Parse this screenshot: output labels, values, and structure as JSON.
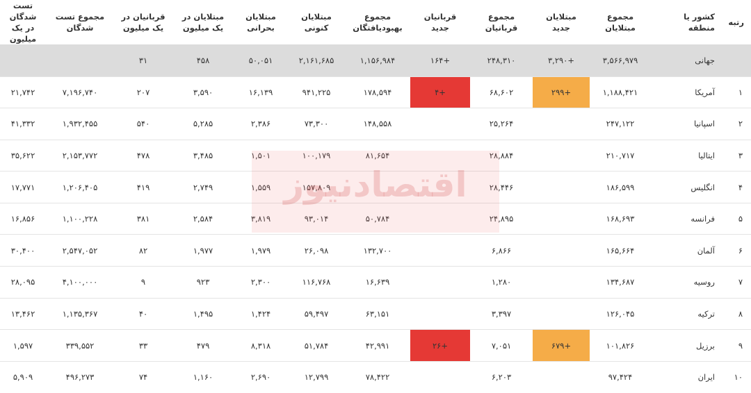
{
  "headers": {
    "rank": "رتبه",
    "country": "کشور یا منطقه",
    "total_cases": "مجموع مبتلایان",
    "new_cases": "مبتلایان جدید",
    "total_deaths": "مجموع قربانیان",
    "new_deaths": "قربانیان جدید",
    "total_recovered": "مجموع بهبودیافتگان",
    "active_cases": "مبتلایان کنونی",
    "critical_cases": "مبتلایان بحرانی",
    "cases_per_million": "مبتلایان در یک میلیون",
    "deaths_per_million": "قربانیان در یک میلیون",
    "total_tests": "مجموع تست شدگان",
    "tests_per_million": "تست شدگان در یک میلیون"
  },
  "rows": [
    {
      "rank": "",
      "country": "جهانی",
      "total_cases": "۳,۵۶۶,۹۷۹",
      "new_cases": "+۳,۲۹۰",
      "total_deaths": "۲۴۸,۳۱۰",
      "new_deaths": "+۱۶۴",
      "total_recovered": "۱,۱۵۶,۹۸۴",
      "active_cases": "۲,۱۶۱,۶۸۵",
      "critical_cases": "۵۰,۰۵۱",
      "cases_per_million": "۴۵۸",
      "deaths_per_million": "۳۱",
      "total_tests": "",
      "tests_per_million": ""
    },
    {
      "rank": "۱",
      "country": "آمریکا",
      "total_cases": "۱,۱۸۸,۴۲۱",
      "new_cases": "+۲۹۹",
      "total_deaths": "۶۸,۶۰۲",
      "new_deaths": "+۴",
      "total_recovered": "۱۷۸,۵۹۴",
      "active_cases": "۹۴۱,۲۲۵",
      "critical_cases": "۱۶,۱۳۹",
      "cases_per_million": "۳,۵۹۰",
      "deaths_per_million": "۲۰۷",
      "total_tests": "۷,۱۹۶,۷۴۰",
      "tests_per_million": "۲۱,۷۴۲"
    },
    {
      "rank": "۲",
      "country": "اسپانیا",
      "total_cases": "۲۴۷,۱۲۲",
      "new_cases": "",
      "total_deaths": "۲۵,۲۶۴",
      "new_deaths": "",
      "total_recovered": "۱۴۸,۵۵۸",
      "active_cases": "۷۳,۳۰۰",
      "critical_cases": "۲,۳۸۶",
      "cases_per_million": "۵,۲۸۵",
      "deaths_per_million": "۵۴۰",
      "total_tests": "۱,۹۳۲,۴۵۵",
      "tests_per_million": "۴۱,۳۳۲"
    },
    {
      "rank": "۳",
      "country": "ایتالیا",
      "total_cases": "۲۱۰,۷۱۷",
      "new_cases": "",
      "total_deaths": "۲۸,۸۸۴",
      "new_deaths": "",
      "total_recovered": "۸۱,۶۵۴",
      "active_cases": "۱۰۰,۱۷۹",
      "critical_cases": "۱,۵۰۱",
      "cases_per_million": "۳,۴۸۵",
      "deaths_per_million": "۴۷۸",
      "total_tests": "۲,۱۵۳,۷۷۲",
      "tests_per_million": "۳۵,۶۲۲"
    },
    {
      "rank": "۴",
      "country": "انگلیس",
      "total_cases": "۱۸۶,۵۹۹",
      "new_cases": "",
      "total_deaths": "۲۸,۴۴۶",
      "new_deaths": "",
      "total_recovered": "",
      "active_cases": "۱۵۷,۸۰۹",
      "critical_cases": "۱,۵۵۹",
      "cases_per_million": "۲,۷۴۹",
      "deaths_per_million": "۴۱۹",
      "total_tests": "۱,۲۰۶,۴۰۵",
      "tests_per_million": "۱۷,۷۷۱"
    },
    {
      "rank": "۵",
      "country": "فرانسه",
      "total_cases": "۱۶۸,۶۹۳",
      "new_cases": "",
      "total_deaths": "۲۴,۸۹۵",
      "new_deaths": "",
      "total_recovered": "۵۰,۷۸۴",
      "active_cases": "۹۳,۰۱۴",
      "critical_cases": "۳,۸۱۹",
      "cases_per_million": "۲,۵۸۴",
      "deaths_per_million": "۳۸۱",
      "total_tests": "۱,۱۰۰,۲۲۸",
      "tests_per_million": "۱۶,۸۵۶"
    },
    {
      "rank": "۶",
      "country": "آلمان",
      "total_cases": "۱۶۵,۶۶۴",
      "new_cases": "",
      "total_deaths": "۶,۸۶۶",
      "new_deaths": "",
      "total_recovered": "۱۳۲,۷۰۰",
      "active_cases": "۲۶,۰۹۸",
      "critical_cases": "۱,۹۷۹",
      "cases_per_million": "۱,۹۷۷",
      "deaths_per_million": "۸۲",
      "total_tests": "۲,۵۴۷,۰۵۲",
      "tests_per_million": "۳۰,۴۰۰"
    },
    {
      "rank": "۷",
      "country": "روسیه",
      "total_cases": "۱۳۴,۶۸۷",
      "new_cases": "",
      "total_deaths": "۱,۲۸۰",
      "new_deaths": "",
      "total_recovered": "۱۶,۶۳۹",
      "active_cases": "۱۱۶,۷۶۸",
      "critical_cases": "۲,۳۰۰",
      "cases_per_million": "۹۲۳",
      "deaths_per_million": "۹",
      "total_tests": "۴,۱۰۰,۰۰۰",
      "tests_per_million": "۲۸,۰۹۵"
    },
    {
      "rank": "۸",
      "country": "ترکیه",
      "total_cases": "۱۲۶,۰۴۵",
      "new_cases": "",
      "total_deaths": "۳,۳۹۷",
      "new_deaths": "",
      "total_recovered": "۶۳,۱۵۱",
      "active_cases": "۵۹,۴۹۷",
      "critical_cases": "۱,۴۲۴",
      "cases_per_million": "۱,۴۹۵",
      "deaths_per_million": "۴۰",
      "total_tests": "۱,۱۳۵,۳۶۷",
      "tests_per_million": "۱۳,۴۶۲"
    },
    {
      "rank": "۹",
      "country": "برزیل",
      "total_cases": "۱۰۱,۸۲۶",
      "new_cases": "+۶۷۹",
      "total_deaths": "۷,۰۵۱",
      "new_deaths": "+۲۶",
      "total_recovered": "۴۲,۹۹۱",
      "active_cases": "۵۱,۷۸۴",
      "critical_cases": "۸,۳۱۸",
      "cases_per_million": "۴۷۹",
      "deaths_per_million": "۳۳",
      "total_tests": "۳۳۹,۵۵۲",
      "tests_per_million": "۱,۵۹۷"
    },
    {
      "rank": "۱۰",
      "country": "ایران",
      "total_cases": "۹۷,۴۲۴",
      "new_cases": "",
      "total_deaths": "۶,۲۰۳",
      "new_deaths": "",
      "total_recovered": "۷۸,۴۲۲",
      "active_cases": "۱۲,۷۹۹",
      "critical_cases": "۲,۶۹۰",
      "cases_per_million": "۱,۱۶۰",
      "deaths_per_million": "۷۴",
      "total_tests": "۴۹۶,۲۷۳",
      "tests_per_million": "۵,۹۰۹"
    }
  ],
  "highlights": {
    "new_cases_color": "#f5ac48",
    "new_deaths_color": "#e53935",
    "world_row_color": "#dcdcdc"
  },
  "watermark": {
    "text": "اقتصادنیوز"
  }
}
